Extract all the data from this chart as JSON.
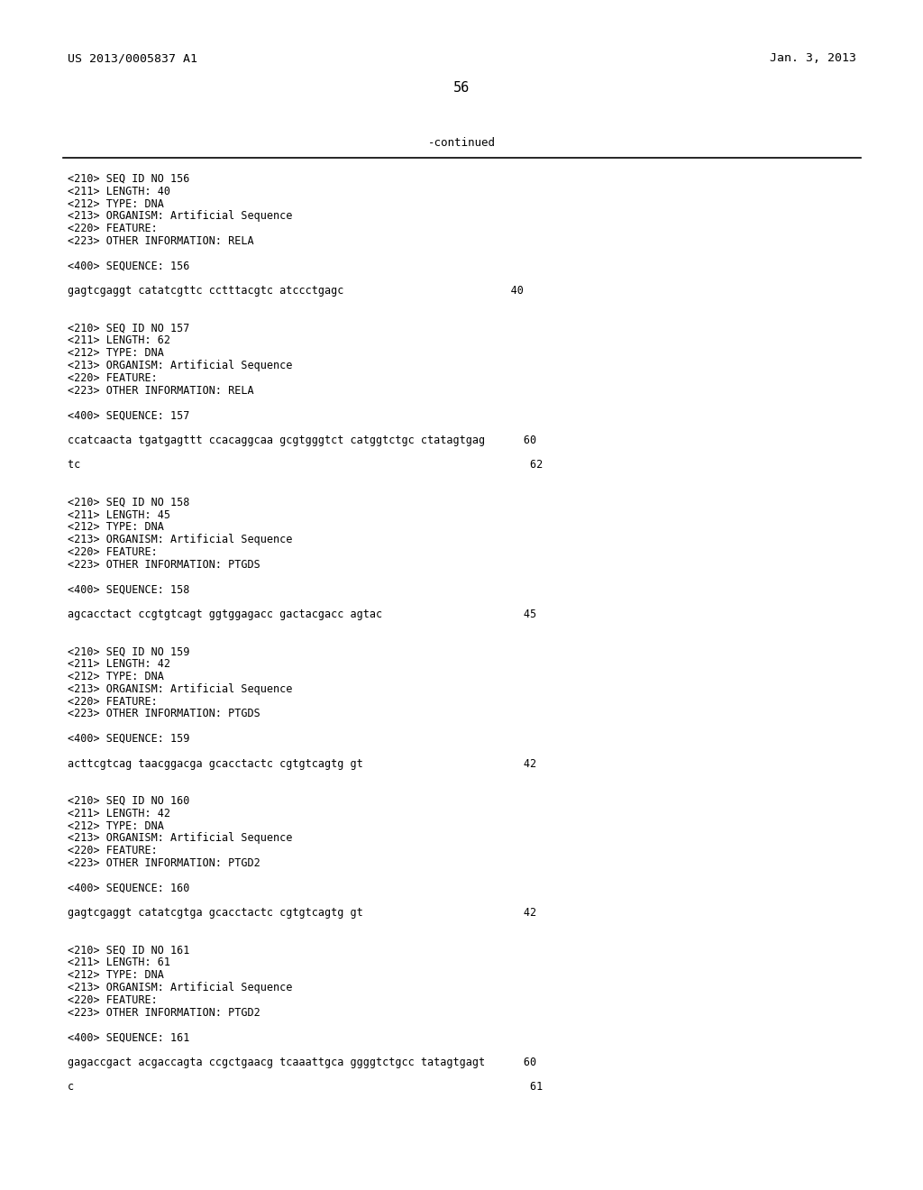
{
  "background_color": "#ffffff",
  "top_left_text": "US 2013/0005837 A1",
  "top_right_text": "Jan. 3, 2013",
  "page_number": "56",
  "continued_text": "-continued",
  "header_fontsize": 9.5,
  "body_fontsize": 8.5,
  "page_num_fontsize": 11,
  "continued_fontsize": 9,
  "content": [
    "<210> SEQ ID NO 156",
    "<211> LENGTH: 40",
    "<212> TYPE: DNA",
    "<213> ORGANISM: Artificial Sequence",
    "<220> FEATURE:",
    "<223> OTHER INFORMATION: RELA",
    "",
    "<400> SEQUENCE: 156",
    "",
    "gagtcgaggt catatcgttc cctttacgtc atccctgagc                          40",
    "",
    "",
    "<210> SEQ ID NO 157",
    "<211> LENGTH: 62",
    "<212> TYPE: DNA",
    "<213> ORGANISM: Artificial Sequence",
    "<220> FEATURE:",
    "<223> OTHER INFORMATION: RELA",
    "",
    "<400> SEQUENCE: 157",
    "",
    "ccatcaacta tgatgagttt ccacaggcaa gcgtgggtct catggtctgc ctatagtgag      60",
    "",
    "tc                                                                      62",
    "",
    "",
    "<210> SEQ ID NO 158",
    "<211> LENGTH: 45",
    "<212> TYPE: DNA",
    "<213> ORGANISM: Artificial Sequence",
    "<220> FEATURE:",
    "<223> OTHER INFORMATION: PTGDS",
    "",
    "<400> SEQUENCE: 158",
    "",
    "agcacctact ccgtgtcagt ggtggagacc gactacgacc agtac                      45",
    "",
    "",
    "<210> SEQ ID NO 159",
    "<211> LENGTH: 42",
    "<212> TYPE: DNA",
    "<213> ORGANISM: Artificial Sequence",
    "<220> FEATURE:",
    "<223> OTHER INFORMATION: PTGDS",
    "",
    "<400> SEQUENCE: 159",
    "",
    "acttcgtcag taacggacga gcacctactc cgtgtcagtg gt                         42",
    "",
    "",
    "<210> SEQ ID NO 160",
    "<211> LENGTH: 42",
    "<212> TYPE: DNA",
    "<213> ORGANISM: Artificial Sequence",
    "<220> FEATURE:",
    "<223> OTHER INFORMATION: PTGD2",
    "",
    "<400> SEQUENCE: 160",
    "",
    "gagtcgaggt catatcgtga gcacctactc cgtgtcagtg gt                         42",
    "",
    "",
    "<210> SEQ ID NO 161",
    "<211> LENGTH: 61",
    "<212> TYPE: DNA",
    "<213> ORGANISM: Artificial Sequence",
    "<220> FEATURE:",
    "<223> OTHER INFORMATION: PTGD2",
    "",
    "<400> SEQUENCE: 161",
    "",
    "gagaccgact acgaccagta ccgctgaacg tcaaattgca ggggtctgcc tatagtgagt      60",
    "",
    "c                                                                       61"
  ]
}
